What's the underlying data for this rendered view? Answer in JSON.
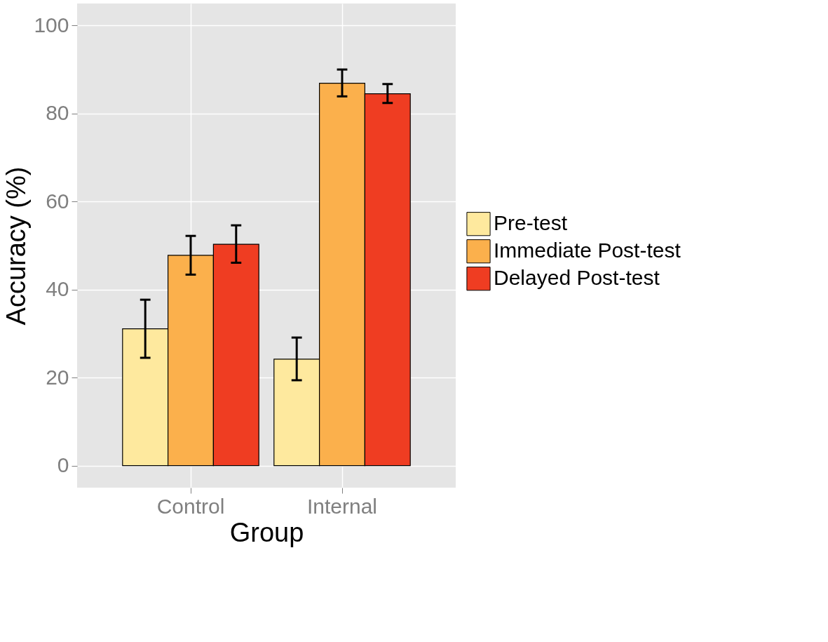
{
  "chart_data": {
    "type": "bar",
    "xlabel": "Group",
    "ylabel": "Accuracy (%)",
    "categories": [
      "Control",
      "Internal"
    ],
    "series": [
      {
        "name": "Pre-test",
        "color": "#fee99e",
        "values": [
          31.1,
          24.2
        ],
        "errors": [
          [
            24.5,
            37.7
          ],
          [
            19.4,
            29.1
          ]
        ]
      },
      {
        "name": "Immediate Post-test",
        "color": "#fbb04c",
        "values": [
          47.8,
          86.9
        ],
        "errors": [
          [
            43.4,
            52.2
          ],
          [
            83.9,
            90.0
          ]
        ]
      },
      {
        "name": "Delayed Post-test",
        "color": "#ef3d22",
        "values": [
          50.3,
          84.5
        ],
        "errors": [
          [
            46.1,
            54.6
          ],
          [
            82.4,
            86.7
          ]
        ]
      }
    ],
    "ylim": [
      -5,
      105
    ],
    "yticks": [
      0,
      20,
      40,
      60,
      80,
      100
    ],
    "grid": true,
    "legend": "right"
  }
}
